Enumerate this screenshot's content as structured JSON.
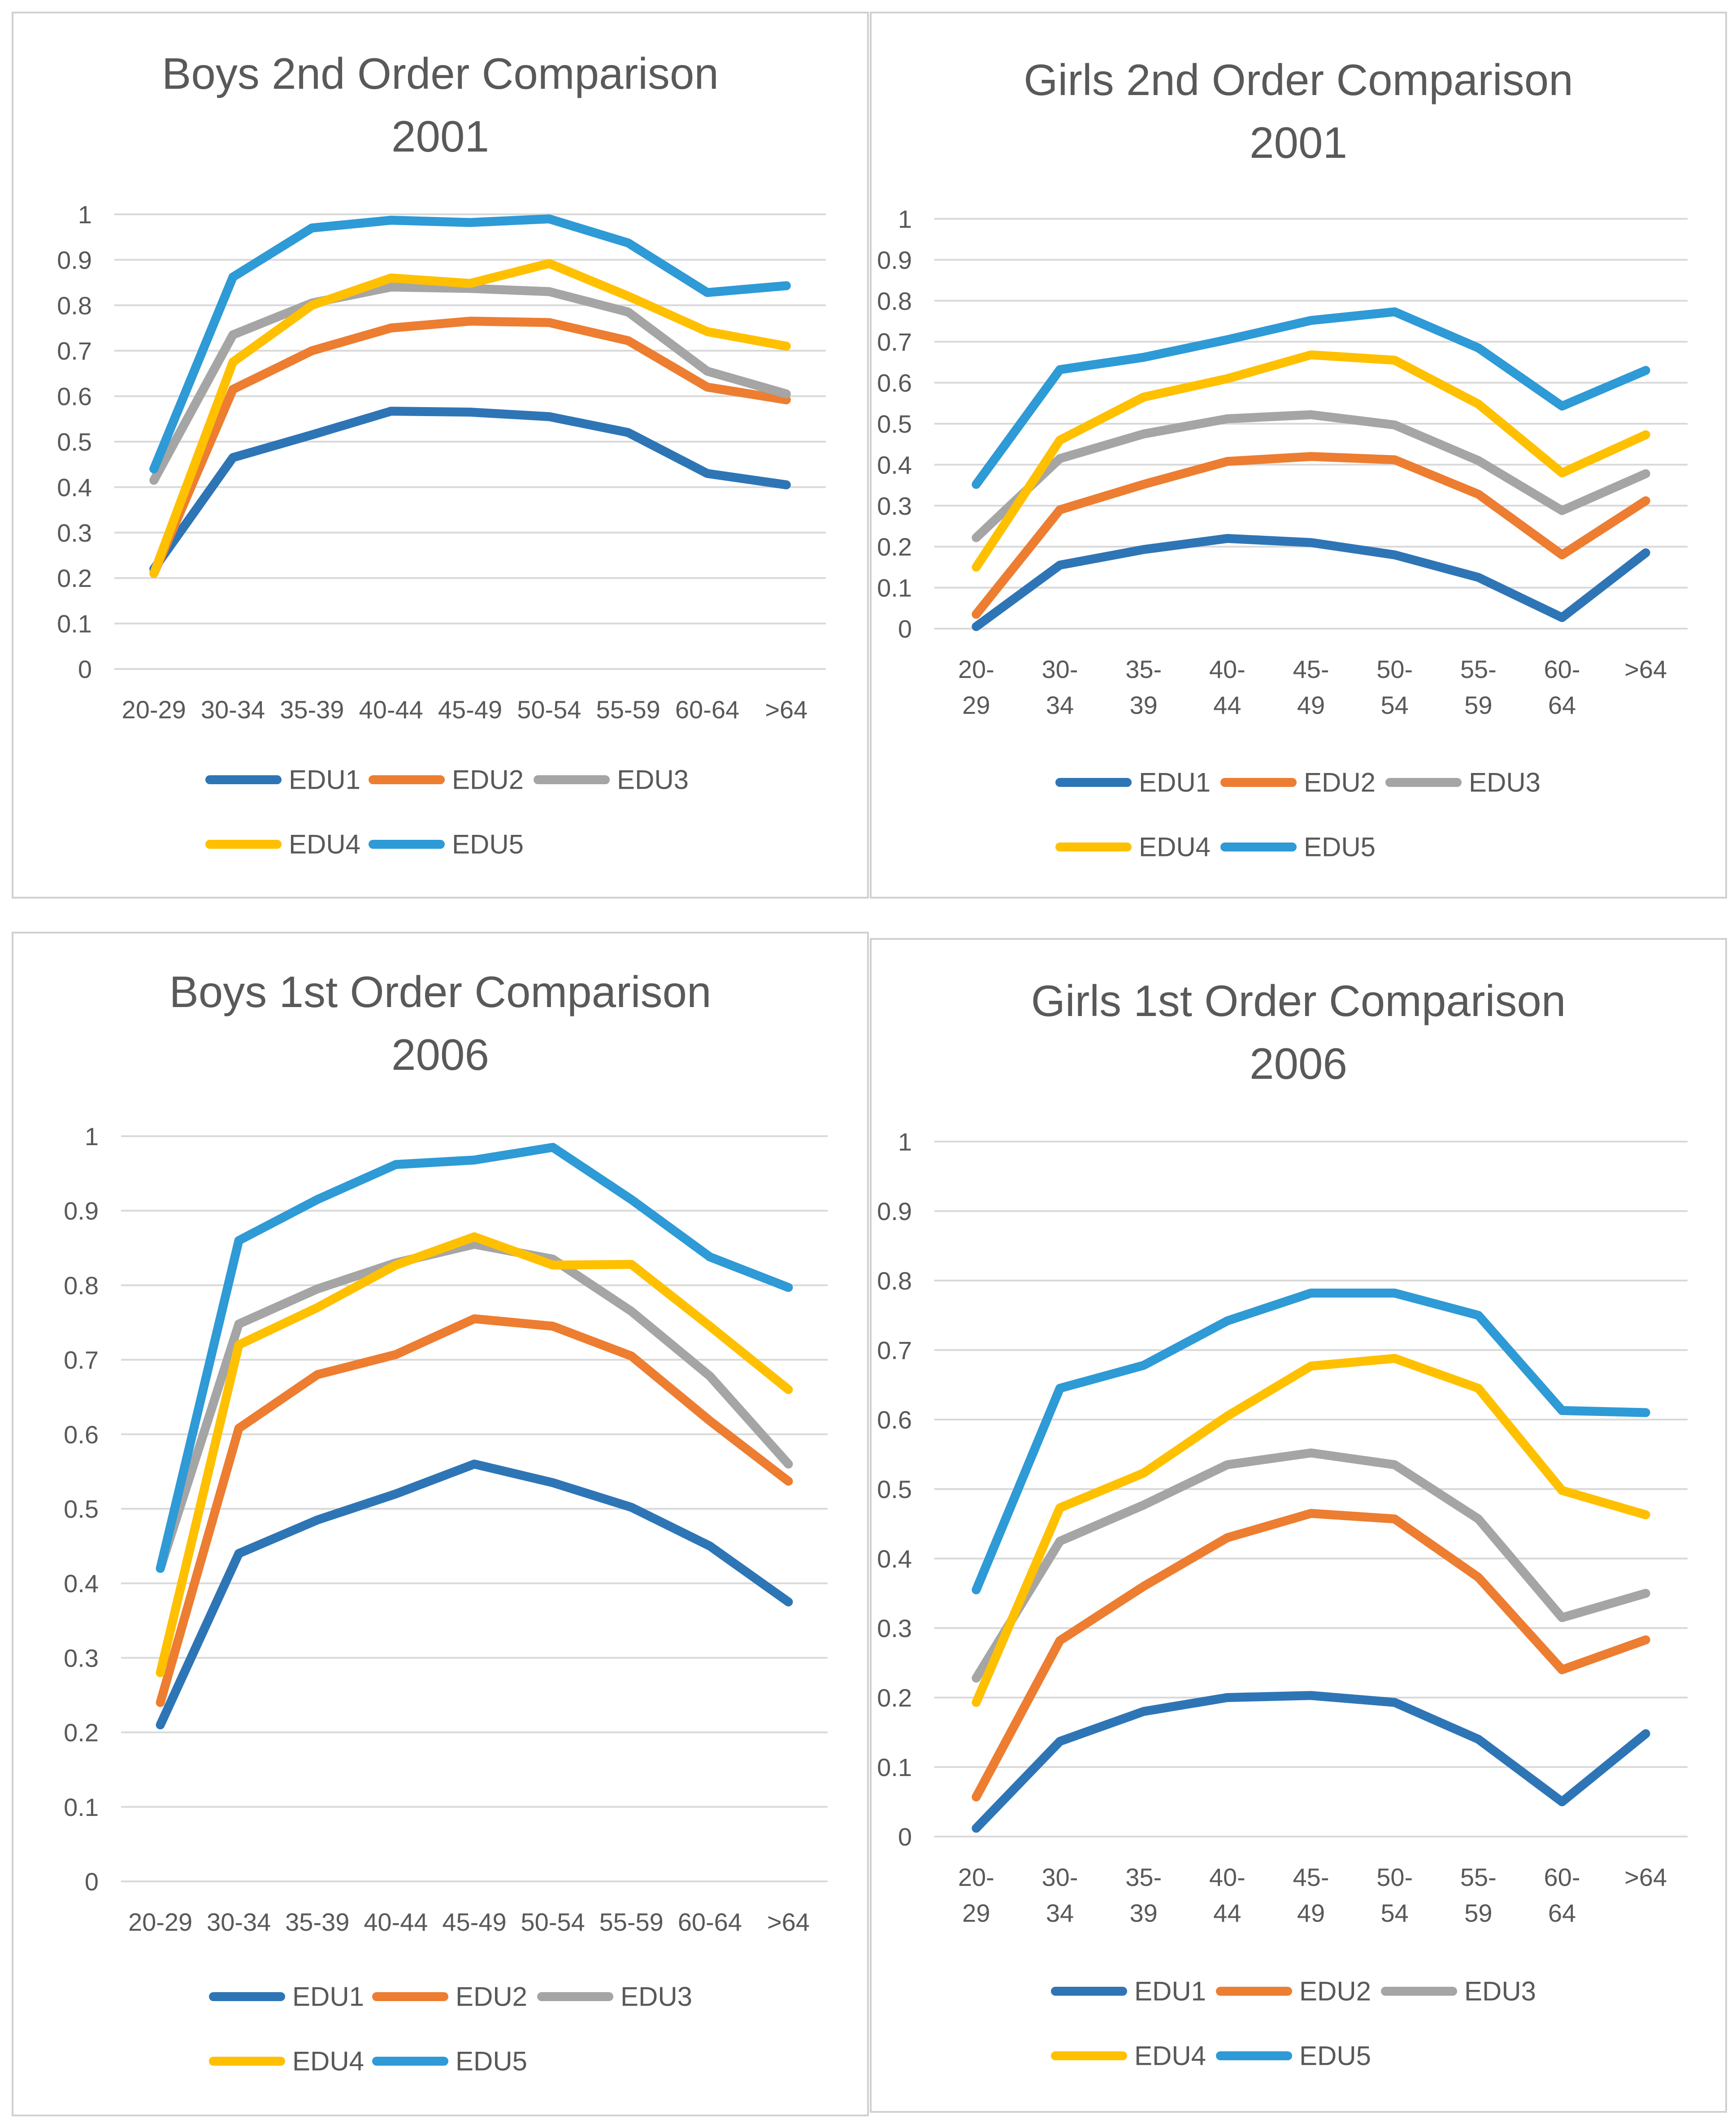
{
  "chart_data": [
    {
      "type": "line",
      "title_lines": [
        "Boys 2nd Order Comparison",
        "2001"
      ],
      "categories": [
        "20-29",
        "30-34",
        "35-39",
        "40-44",
        "45-49",
        "50-54",
        "55-59",
        "60-64",
        ">64"
      ],
      "ylim": [
        0,
        1
      ],
      "yticks": [
        "0",
        "0.1",
        "0.2",
        "0.3",
        "0.4",
        "0.5",
        "0.6",
        "0.7",
        "0.8",
        "0.9",
        "1"
      ],
      "grid": true,
      "legend_position": "bottom",
      "series": [
        {
          "name": "EDU1",
          "color": "#2e75b6",
          "values": [
            0.22,
            0.465,
            0.515,
            0.567,
            0.565,
            0.555,
            0.52,
            0.43,
            0.405
          ]
        },
        {
          "name": "EDU2",
          "color": "#ed7d31",
          "values": [
            0.21,
            0.615,
            0.7,
            0.75,
            0.765,
            0.762,
            0.722,
            0.62,
            0.592
          ]
        },
        {
          "name": "EDU3",
          "color": "#a5a5a5",
          "values": [
            0.415,
            0.735,
            0.805,
            0.84,
            0.837,
            0.83,
            0.785,
            0.655,
            0.605
          ]
        },
        {
          "name": "EDU4",
          "color": "#ffc000",
          "values": [
            0.21,
            0.675,
            0.8,
            0.86,
            0.848,
            0.892,
            0.82,
            0.742,
            0.71
          ]
        },
        {
          "name": "EDU5",
          "color": "#2e9ad6",
          "values": [
            0.44,
            0.862,
            0.97,
            0.987,
            0.982,
            0.99,
            0.937,
            0.828,
            0.843
          ]
        }
      ]
    },
    {
      "type": "line",
      "title_lines": [
        "Girls 2nd Order Comparison",
        "2001"
      ],
      "categories": [
        "20-29",
        "30-34",
        "35-39",
        "40-44",
        "45-49",
        "50-54",
        "55-59",
        "60-64",
        ">64"
      ],
      "ylim": [
        0,
        1
      ],
      "yticks": [
        "0",
        "0.1",
        "0.2",
        "0.3",
        "0.4",
        "0.5",
        "0.6",
        "0.7",
        "0.8",
        "0.9",
        "1"
      ],
      "grid": true,
      "legend_position": "bottom",
      "series": [
        {
          "name": "EDU1",
          "color": "#2e75b6",
          "values": [
            0.005,
            0.155,
            0.193,
            0.22,
            0.21,
            0.18,
            0.125,
            0.027,
            0.185
          ]
        },
        {
          "name": "EDU2",
          "color": "#ed7d31",
          "values": [
            0.035,
            0.29,
            0.352,
            0.408,
            0.42,
            0.412,
            0.328,
            0.18,
            0.312
          ]
        },
        {
          "name": "EDU3",
          "color": "#a5a5a5",
          "values": [
            0.222,
            0.415,
            0.475,
            0.512,
            0.522,
            0.497,
            0.41,
            0.288,
            0.378
          ]
        },
        {
          "name": "EDU4",
          "color": "#ffc000",
          "values": [
            0.15,
            0.46,
            0.565,
            0.61,
            0.668,
            0.655,
            0.548,
            0.38,
            0.473
          ]
        },
        {
          "name": "EDU5",
          "color": "#2e9ad6",
          "values": [
            0.352,
            0.632,
            0.662,
            0.705,
            0.752,
            0.773,
            0.685,
            0.543,
            0.63
          ]
        }
      ]
    },
    {
      "type": "line",
      "title_lines": [
        "Boys 1st Order Comparison",
        "2006"
      ],
      "categories": [
        "20-29",
        "30-34",
        "35-39",
        "40-44",
        "45-49",
        "50-54",
        "55-59",
        "60-64",
        ">64"
      ],
      "ylim": [
        0,
        1
      ],
      "yticks": [
        "0",
        "0.1",
        "0.2",
        "0.3",
        "0.4",
        "0.5",
        "0.6",
        "0.7",
        "0.8",
        "0.9",
        "1"
      ],
      "grid": true,
      "legend_position": "bottom",
      "series": [
        {
          "name": "EDU1",
          "color": "#2e75b6",
          "values": [
            0.21,
            0.44,
            0.485,
            0.52,
            0.56,
            0.535,
            0.502,
            0.45,
            0.375
          ]
        },
        {
          "name": "EDU2",
          "color": "#ed7d31",
          "values": [
            0.24,
            0.608,
            0.68,
            0.707,
            0.755,
            0.745,
            0.705,
            0.618,
            0.537
          ]
        },
        {
          "name": "EDU3",
          "color": "#a5a5a5",
          "values": [
            0.42,
            0.748,
            0.795,
            0.83,
            0.855,
            0.835,
            0.765,
            0.678,
            0.56
          ]
        },
        {
          "name": "EDU4",
          "color": "#ffc000",
          "values": [
            0.28,
            0.72,
            0.77,
            0.827,
            0.865,
            0.827,
            0.828,
            0.745,
            0.66
          ]
        },
        {
          "name": "EDU5",
          "color": "#2e9ad6",
          "values": [
            0.42,
            0.86,
            0.915,
            0.962,
            0.968,
            0.985,
            0.915,
            0.838,
            0.797
          ]
        }
      ]
    },
    {
      "type": "line",
      "title_lines": [
        "Girls 1st Order Comparison",
        "2006"
      ],
      "categories": [
        "20-29",
        "30-34",
        "35-39",
        "40-44",
        "45-49",
        "50-54",
        "55-59",
        "60-64",
        ">64"
      ],
      "ylim": [
        0,
        1
      ],
      "yticks": [
        "0",
        "0.1",
        "0.2",
        "0.3",
        "0.4",
        "0.5",
        "0.6",
        "0.7",
        "0.8",
        "0.9",
        "1"
      ],
      "grid": true,
      "legend_position": "bottom",
      "series": [
        {
          "name": "EDU1",
          "color": "#2e75b6",
          "values": [
            0.012,
            0.137,
            0.18,
            0.2,
            0.203,
            0.193,
            0.14,
            0.05,
            0.148
          ]
        },
        {
          "name": "EDU2",
          "color": "#ed7d31",
          "values": [
            0.057,
            0.282,
            0.36,
            0.43,
            0.465,
            0.457,
            0.373,
            0.24,
            0.283
          ]
        },
        {
          "name": "EDU3",
          "color": "#a5a5a5",
          "values": [
            0.228,
            0.425,
            0.477,
            0.535,
            0.552,
            0.535,
            0.457,
            0.315,
            0.35
          ]
        },
        {
          "name": "EDU4",
          "color": "#ffc000",
          "values": [
            0.193,
            0.473,
            0.523,
            0.605,
            0.677,
            0.688,
            0.645,
            0.498,
            0.463
          ]
        },
        {
          "name": "EDU5",
          "color": "#2e9ad6",
          "values": [
            0.355,
            0.645,
            0.678,
            0.742,
            0.782,
            0.782,
            0.75,
            0.613,
            0.61
          ]
        }
      ]
    }
  ]
}
